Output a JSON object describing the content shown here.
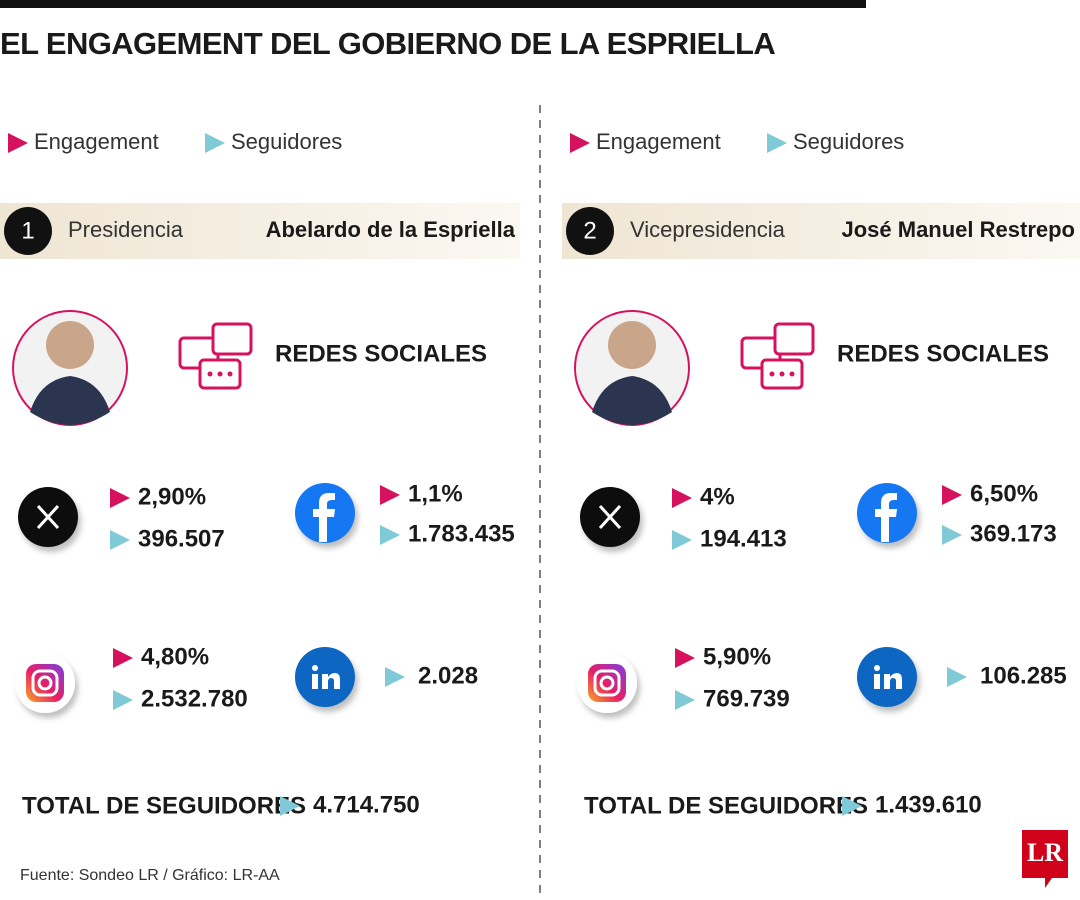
{
  "title": "EL ENGAGEMENT DEL GOBIERNO DE LA ESPRIELLA",
  "panels": [
    {
      "legend": [
        "Engagement",
        "Seguidores"
      ],
      "number": "1",
      "role": "Presidencia",
      "name": "Abelardo de la Espriella",
      "section": "REDES SOCIALES",
      "networks": [
        {
          "engagement": "2,90%",
          "followers": "396.507"
        },
        {
          "engagement": "1,1%",
          "followers": "1.783.435"
        },
        {
          "engagement": "4,80%",
          "followers": "2.532.780"
        },
        {
          "followers": "2.028"
        }
      ],
      "total_label": "TOTAL DE SEGUIDORES",
      "total": "4.714.750"
    },
    {
      "legend": [
        "Engagement",
        "Seguidores"
      ],
      "number": "2",
      "role": "Vicepresidencia",
      "name": "José Manuel Restrepo",
      "section": "REDES SOCIALES",
      "networks": [
        {
          "engagement": "4%",
          "followers": "194.413"
        },
        {
          "engagement": "6,50%",
          "followers": "369.173"
        },
        {
          "engagement": "5,90%",
          "followers": "769.739"
        },
        {
          "followers": "106.285"
        }
      ],
      "total_label": "TOTAL DE SEGUIDORES",
      "total": "1.439.610"
    }
  ],
  "source": "Fuente: Sondeo LR / Gráfico: LR-AA",
  "logo": "LR"
}
